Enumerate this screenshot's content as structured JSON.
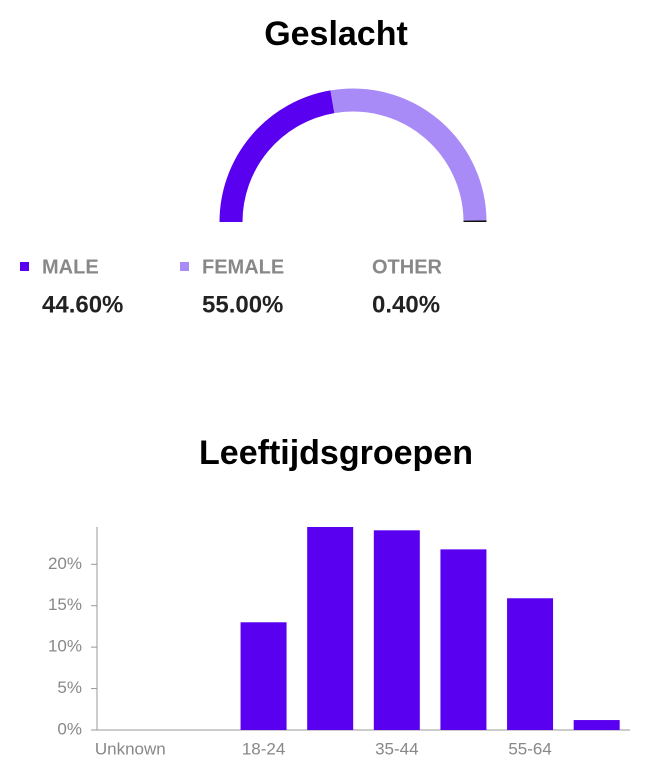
{
  "chart_data": [
    {
      "type": "semi-donut",
      "title": "Geslacht",
      "categories": [
        "MALE",
        "FEMALE",
        "OTHER"
      ],
      "values": [
        44.6,
        55.0,
        0.4
      ],
      "value_labels": [
        "44.60%",
        "55.00%",
        "0.40%"
      ],
      "colors": [
        "#5a00f0",
        "#a98bf7",
        "#111111"
      ]
    },
    {
      "type": "bar",
      "title": "Leeftijdsgroepen",
      "categories": [
        "Unknown",
        null,
        "18-24",
        null,
        "35-44",
        null,
        "55-64",
        null
      ],
      "values": [
        0,
        0,
        13.0,
        24.5,
        24.1,
        21.8,
        15.9,
        1.2
      ],
      "color": "#5a00f0",
      "ylim": [
        0,
        24.5
      ],
      "yticks": [
        {
          "value": 0,
          "label": "0%"
        },
        {
          "value": 5,
          "label": "5%"
        },
        {
          "value": 10,
          "label": "10%"
        },
        {
          "value": 15,
          "label": "15%"
        },
        {
          "value": 20,
          "label": "20%"
        }
      ]
    }
  ]
}
